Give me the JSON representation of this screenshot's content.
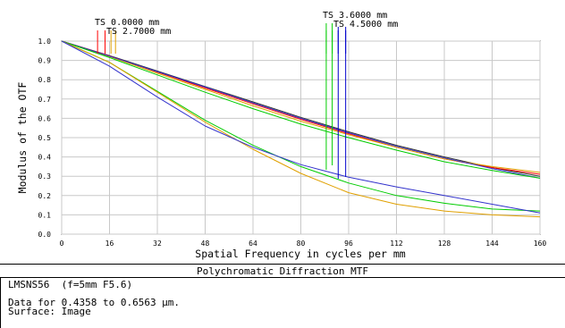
{
  "chart_data": {
    "type": "line",
    "title": "Polychromatic Diffraction MTF",
    "xlabel": "Spatial Frequency in cycles per mm",
    "ylabel": "Modulus of the OTF",
    "xlim": [
      0,
      160
    ],
    "ylim": [
      0,
      1.0
    ],
    "x_ticks": [
      "0",
      "16",
      "32",
      "48",
      "64",
      "80",
      "96",
      "112",
      "128",
      "144",
      "160"
    ],
    "y_ticks": [
      "0.0",
      "0.1",
      "0.2",
      "0.3",
      "0.4",
      "0.5",
      "0.6",
      "0.7",
      "0.8",
      "0.9",
      "1.0"
    ],
    "grid": true,
    "legend_labels": [
      "TS 0.0000 mm",
      "TS 2.7000 mm",
      "TS 3.6000 mm",
      "TS 4.5000 mm"
    ],
    "legend_markers": [
      {
        "x": 12,
        "color": "#ff0000"
      },
      {
        "x": 14.5,
        "color": "#ff0000"
      },
      {
        "x": 16.5,
        "color": "#e0a000"
      },
      {
        "x": 18,
        "color": "#e0a000"
      },
      {
        "x": 88.5,
        "color": "#00cc00"
      },
      {
        "x": 90.5,
        "color": "#00cc00"
      },
      {
        "x": 92.5,
        "color": "#0000cc"
      },
      {
        "x": 95,
        "color": "#0000cc"
      }
    ],
    "x": [
      0,
      16,
      32,
      48,
      64,
      80,
      96,
      112,
      128,
      144,
      160
    ],
    "series": [
      {
        "color": "#333333",
        "values": [
          1.0,
          0.925,
          0.845,
          0.765,
          0.685,
          0.605,
          0.53,
          0.46,
          0.4,
          0.345,
          0.3
        ]
      },
      {
        "color": "#ff0000",
        "values": [
          1.0,
          0.923,
          0.84,
          0.757,
          0.675,
          0.595,
          0.52,
          0.45,
          0.39,
          0.345,
          0.31
        ]
      },
      {
        "color": "#e0a000",
        "values": [
          1.0,
          0.92,
          0.834,
          0.75,
          0.665,
          0.585,
          0.515,
          0.45,
          0.39,
          0.35,
          0.32
        ]
      },
      {
        "color": "#3333cc",
        "values": [
          1.0,
          0.922,
          0.842,
          0.762,
          0.68,
          0.6,
          0.525,
          0.455,
          0.395,
          0.34,
          0.29
        ]
      },
      {
        "color": "#00cc00",
        "values": [
          1.0,
          0.915,
          0.825,
          0.735,
          0.65,
          0.57,
          0.5,
          0.435,
          0.375,
          0.33,
          0.29
        ]
      },
      {
        "color": "#00cc00",
        "values": [
          1.0,
          0.89,
          0.74,
          0.59,
          0.46,
          0.35,
          0.265,
          0.2,
          0.16,
          0.13,
          0.12
        ]
      },
      {
        "color": "#e0a000",
        "values": [
          1.0,
          0.89,
          0.735,
          0.58,
          0.44,
          0.315,
          0.215,
          0.155,
          0.12,
          0.1,
          0.09
        ]
      },
      {
        "color": "#3333cc",
        "values": [
          1.0,
          0.87,
          0.71,
          0.56,
          0.45,
          0.36,
          0.295,
          0.245,
          0.2,
          0.155,
          0.11
        ]
      }
    ]
  },
  "footer": {
    "lens": "LMSNS56  (f=5mm F5.6)",
    "data_range": "Data for 0.4358 to 0.6563 µm.",
    "surface": "Surface: Image"
  }
}
